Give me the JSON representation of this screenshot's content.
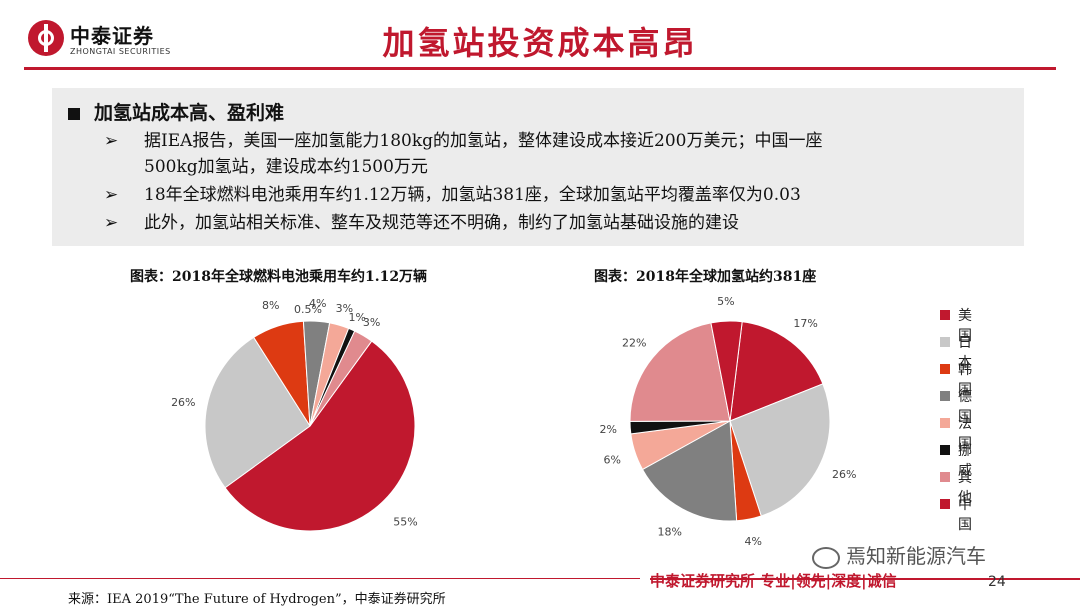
{
  "logo": {
    "name": "中泰证券",
    "en": "ZHONGTAI SECURITIES"
  },
  "title": "加氢站投资成本高昂",
  "summary": {
    "heading": "加氢站成本高、盈利难",
    "bullets": [
      {
        "arrow": "➢",
        "lines": [
          "据IEA报告，美国一座加氢能力180kg的加氢站，整体建设成本接近200万美元；中国一座",
          "500kg加氢站，建设成本约1500万元"
        ]
      },
      {
        "arrow": "➢",
        "lines": [
          "18年全球燃料电池乘用车约1.12万辆，加氢站381座，全球加氢站平均覆盖率仅为0.03"
        ]
      },
      {
        "arrow": "➢",
        "lines": [
          "此外，加氢站相关标准、整车及规范等还不明确，制约了加氢站基础设施的建设"
        ]
      }
    ]
  },
  "chart_data": [
    {
      "type": "pie",
      "title": "图表：2018年全球燃料电池乘用车约1.12万辆",
      "categories": [
        "中国",
        "日本",
        "韩国",
        "德国",
        "法国",
        "挪威",
        "其他"
      ],
      "values": [
        55,
        26,
        8,
        4,
        3,
        1,
        3
      ],
      "labels": [
        "55%",
        "26%",
        "8%",
        "4%",
        "3%",
        "1%",
        "3%"
      ],
      "extra_label": "0.5%",
      "colors": [
        "#c0182e",
        "#c8c8c8",
        "#dd3a12",
        "#808080",
        "#f4a898",
        "#111111",
        "#e08a8e"
      ]
    },
    {
      "type": "pie",
      "title": "图表：2018年全球加氢站约381座",
      "categories": [
        "美国",
        "日本",
        "韩国",
        "德国",
        "法国",
        "挪威",
        "其他",
        "中国"
      ],
      "values": [
        17,
        26,
        4,
        18,
        6,
        2,
        22,
        5
      ],
      "labels": [
        "17%",
        "26%",
        "4%",
        "18%",
        "6%",
        "2%",
        "22%",
        "5%"
      ],
      "colors": [
        "#c0182e",
        "#c8c8c8",
        "#dd3a12",
        "#808080",
        "#f4a898",
        "#111111",
        "#e08a8e",
        "#c0182e"
      ]
    }
  ],
  "legend": [
    {
      "label": "美国",
      "color": "#c0182e"
    },
    {
      "label": "日本",
      "color": "#c8c8c8"
    },
    {
      "label": "韩国",
      "color": "#dd3a12"
    },
    {
      "label": "德国",
      "color": "#808080"
    },
    {
      "label": "法国",
      "color": "#f4a898"
    },
    {
      "label": "挪威",
      "color": "#111111"
    },
    {
      "label": "其他",
      "color": "#e08a8e"
    },
    {
      "label": "中国",
      "color": "#c0182e"
    }
  ],
  "footer": {
    "brand": "中泰证券研究所 专业|领先|深度|诚信",
    "page": "24",
    "watermark": "焉知新能源汽车",
    "source": "来源：IEA 2019“The Future of Hydrogen”，中泰证券研究所"
  }
}
